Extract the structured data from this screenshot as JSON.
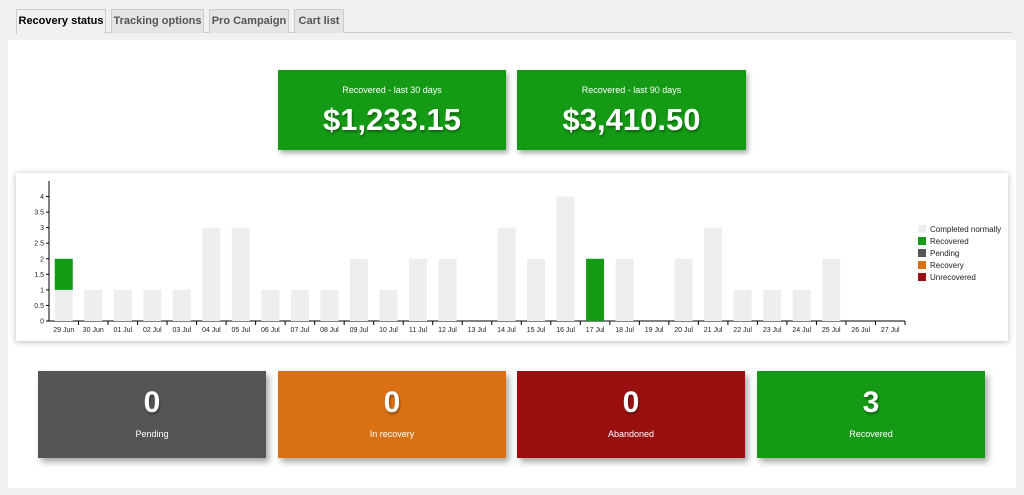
{
  "tabs": [
    {
      "label": "Recovery status",
      "active": true
    },
    {
      "label": "Tracking options",
      "active": false
    },
    {
      "label": "Pro Campaign",
      "active": false
    },
    {
      "label": "Cart list",
      "active": false
    }
  ],
  "stats": {
    "last30": {
      "label": "Recovered - last 30 days",
      "value": "$1,233.15"
    },
    "last90": {
      "label": "Recovered - last 90 days",
      "value": "$3,410.50"
    }
  },
  "colors": {
    "completed": "#eeeeee",
    "recovered": "#149a14",
    "pending": "#555555",
    "recovery": "#d97014",
    "unrecovered": "#9a1010"
  },
  "chart_data": {
    "type": "bar",
    "stacked": true,
    "categories": [
      "29 Jun",
      "30 Jun",
      "01 Jul",
      "02 Jul",
      "03 Jul",
      "04 Jul",
      "05 Jul",
      "06 Jul",
      "07 Jul",
      "08 Jul",
      "09 Jul",
      "10 Jul",
      "11 Jul",
      "12 Jul",
      "13 Jul",
      "14 Jul",
      "15 Jul",
      "16 Jul",
      "17 Jul",
      "18 Jul",
      "19 Jul",
      "20 Jul",
      "21 Jul",
      "22 Jul",
      "23 Jul",
      "24 Jul",
      "25 Jul",
      "26 Jul",
      "27 Jul"
    ],
    "series": [
      {
        "name": "Completed normally",
        "values": [
          1,
          1,
          1,
          1,
          1,
          3,
          3,
          1,
          1,
          1,
          2,
          1,
          2,
          2,
          0,
          3,
          2,
          4,
          0,
          2,
          0,
          2,
          3,
          1,
          1,
          1,
          2,
          0,
          0
        ]
      },
      {
        "name": "Recovered",
        "values": [
          1,
          0,
          0,
          0,
          0,
          0,
          0,
          0,
          0,
          0,
          0,
          0,
          0,
          0,
          0,
          0,
          0,
          0,
          2,
          0,
          0,
          0,
          0,
          0,
          0,
          0,
          0,
          0,
          0
        ]
      },
      {
        "name": "Pending",
        "values": [
          0,
          0,
          0,
          0,
          0,
          0,
          0,
          0,
          0,
          0,
          0,
          0,
          0,
          0,
          0,
          0,
          0,
          0,
          0,
          0,
          0,
          0,
          0,
          0,
          0,
          0,
          0,
          0,
          0
        ]
      },
      {
        "name": "Recovery",
        "values": [
          0,
          0,
          0,
          0,
          0,
          0,
          0,
          0,
          0,
          0,
          0,
          0,
          0,
          0,
          0,
          0,
          0,
          0,
          0,
          0,
          0,
          0,
          0,
          0,
          0,
          0,
          0,
          0,
          0
        ]
      },
      {
        "name": "Unrecovered",
        "values": [
          0,
          0,
          0,
          0,
          0,
          0,
          0,
          0,
          0,
          0,
          0,
          0,
          0,
          0,
          0,
          0,
          0,
          0,
          0,
          0,
          0,
          0,
          0,
          0,
          0,
          0,
          0,
          0,
          0
        ]
      }
    ],
    "ylim": [
      0,
      4.5
    ],
    "yticks": [
      "0",
      "0.5",
      "1",
      "1.5",
      "2",
      "2.5",
      "3",
      "3.5",
      "4"
    ],
    "legend_position": "right"
  },
  "boxes": [
    {
      "value": "0",
      "label": "Pending",
      "color": "#555555"
    },
    {
      "value": "0",
      "label": "In recovery",
      "color": "#d97014"
    },
    {
      "value": "0",
      "label": "Abandoned",
      "color": "#9a1010"
    },
    {
      "value": "3",
      "label": "Recovered",
      "color": "#149a14"
    }
  ]
}
